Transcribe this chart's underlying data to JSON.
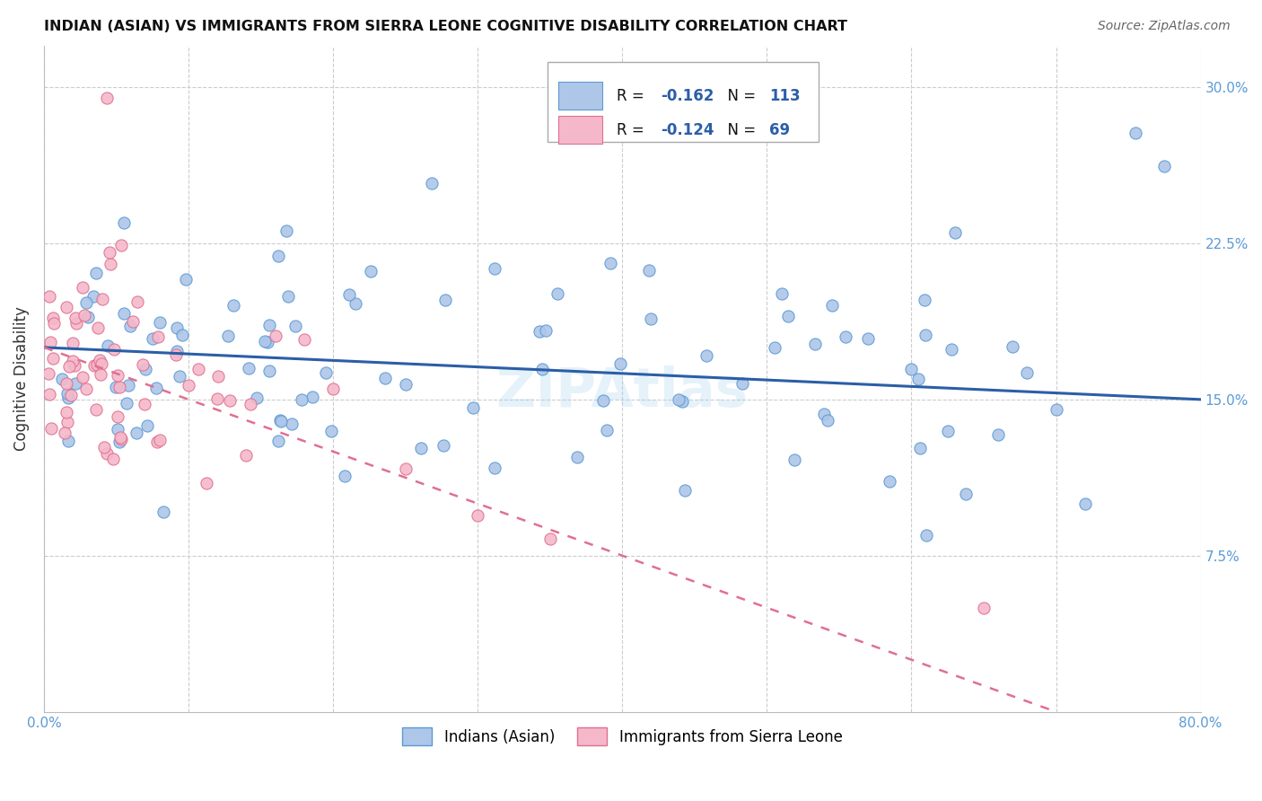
{
  "title": "INDIAN (ASIAN) VS IMMIGRANTS FROM SIERRA LEONE COGNITIVE DISABILITY CORRELATION CHART",
  "source": "Source: ZipAtlas.com",
  "ylabel": "Cognitive Disability",
  "xlim": [
    0.0,
    0.8
  ],
  "ylim": [
    0.0,
    0.32
  ],
  "xticks": [
    0.0,
    0.1,
    0.2,
    0.3,
    0.4,
    0.5,
    0.6,
    0.7,
    0.8
  ],
  "xticklabels": [
    "0.0%",
    "",
    "",
    "",
    "",
    "",
    "",
    "",
    "80.0%"
  ],
  "yticks_right": [
    0.075,
    0.15,
    0.225,
    0.3
  ],
  "ytick_right_labels": [
    "7.5%",
    "15.0%",
    "22.5%",
    "30.0%"
  ],
  "blue_color": "#aec6e8",
  "blue_edge_color": "#5b9bd5",
  "pink_color": "#f4b8ca",
  "pink_edge_color": "#e07090",
  "blue_line_color": "#2b5ea7",
  "pink_line_color": "#e07090",
  "tick_color": "#5b9bd5",
  "legend_R_color": "#000000",
  "legend_val_color": "#2b5ea7",
  "legend_R_blue": "-0.162",
  "legend_N_blue": "113",
  "legend_R_pink": "-0.124",
  "legend_N_pink": "69",
  "watermark": "ZIPAtlas",
  "blue_line_start_y": 0.175,
  "blue_line_end_y": 0.15,
  "pink_line_start_y": 0.175,
  "pink_line_end_y": 0.0,
  "pink_line_end_x": 0.7
}
